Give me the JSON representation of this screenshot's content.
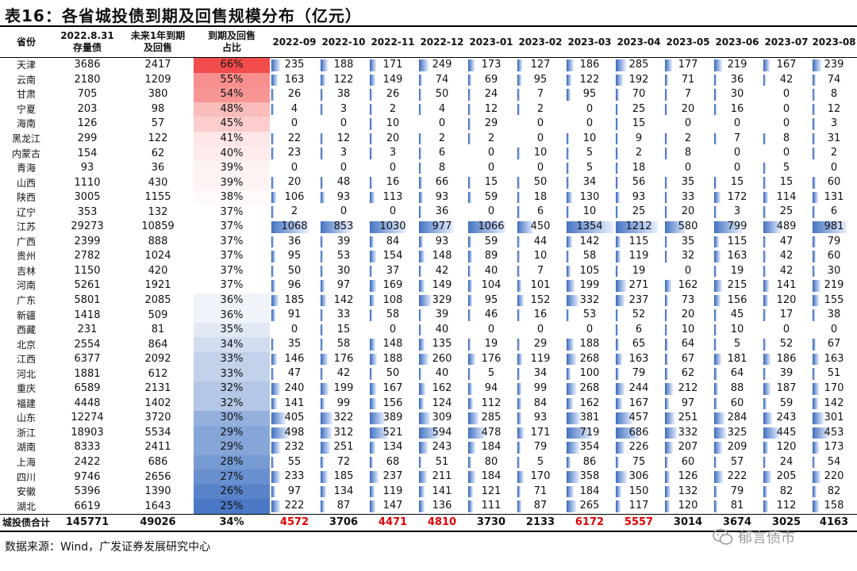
{
  "title": "表16：各省城投债到期及回售规模分布（亿元）",
  "header": {
    "prov": "省份",
    "stock": [
      "2022.8.31",
      "存量债"
    ],
    "due": [
      "未来1年到期",
      "及回售"
    ],
    "ratio": [
      "到期及回售",
      "占比"
    ],
    "months": [
      "2022-09",
      "2022-10",
      "2022-11",
      "2022-12",
      "2023-01",
      "2023-02",
      "2023-03",
      "2023-04",
      "2023-05",
      "2023-06",
      "2023-07",
      "2023-08"
    ]
  },
  "rows": [
    {
      "prov": "天津",
      "stock": "3686",
      "due": "2417",
      "ratio": "66%",
      "m": [
        235,
        188,
        171,
        249,
        173,
        127,
        186,
        285,
        177,
        219,
        167,
        239
      ]
    },
    {
      "prov": "云南",
      "stock": "2180",
      "due": "1209",
      "ratio": "55%",
      "m": [
        163,
        122,
        149,
        74,
        69,
        95,
        122,
        192,
        71,
        36,
        42,
        74
      ]
    },
    {
      "prov": "甘肃",
      "stock": "705",
      "due": "380",
      "ratio": "54%",
      "m": [
        26,
        38,
        26,
        50,
        24,
        7,
        95,
        70,
        7,
        30,
        0,
        8
      ]
    },
    {
      "prov": "宁夏",
      "stock": "203",
      "due": "98",
      "ratio": "48%",
      "m": [
        4,
        3,
        2,
        4,
        12,
        2,
        0,
        25,
        20,
        16,
        0,
        12
      ]
    },
    {
      "prov": "海南",
      "stock": "126",
      "due": "57",
      "ratio": "45%",
      "m": [
        0,
        0,
        10,
        0,
        29,
        0,
        0,
        15,
        0,
        0,
        0,
        3
      ]
    },
    {
      "prov": "黑龙江",
      "stock": "299",
      "due": "122",
      "ratio": "41%",
      "m": [
        22,
        12,
        20,
        2,
        2,
        0,
        10,
        9,
        2,
        7,
        8,
        31
      ]
    },
    {
      "prov": "内蒙古",
      "stock": "154",
      "due": "62",
      "ratio": "40%",
      "m": [
        23,
        3,
        3,
        6,
        0,
        10,
        5,
        2,
        8,
        0,
        0,
        2
      ]
    },
    {
      "prov": "青海",
      "stock": "93",
      "due": "36",
      "ratio": "39%",
      "m": [
        0,
        0,
        0,
        8,
        0,
        0,
        5,
        18,
        0,
        0,
        5,
        0
      ]
    },
    {
      "prov": "山西",
      "stock": "1110",
      "due": "430",
      "ratio": "39%",
      "m": [
        20,
        48,
        16,
        66,
        15,
        50,
        34,
        56,
        35,
        15,
        15,
        60
      ]
    },
    {
      "prov": "陕西",
      "stock": "3005",
      "due": "1155",
      "ratio": "38%",
      "m": [
        106,
        93,
        113,
        93,
        59,
        18,
        130,
        93,
        33,
        172,
        114,
        131
      ]
    },
    {
      "prov": "辽宁",
      "stock": "353",
      "due": "132",
      "ratio": "37%",
      "m": [
        2,
        0,
        0,
        36,
        0,
        6,
        10,
        25,
        20,
        3,
        25,
        6
      ]
    },
    {
      "prov": "江苏",
      "stock": "29273",
      "due": "10859",
      "ratio": "37%",
      "m": [
        1068,
        853,
        1030,
        977,
        1066,
        450,
        1354,
        1212,
        580,
        799,
        489,
        981
      ]
    },
    {
      "prov": "广西",
      "stock": "2399",
      "due": "888",
      "ratio": "37%",
      "m": [
        36,
        39,
        84,
        93,
        59,
        44,
        142,
        115,
        35,
        115,
        47,
        79
      ]
    },
    {
      "prov": "贵州",
      "stock": "2782",
      "due": "1024",
      "ratio": "37%",
      "m": [
        95,
        53,
        154,
        148,
        89,
        10,
        58,
        119,
        32,
        163,
        42,
        60
      ]
    },
    {
      "prov": "吉林",
      "stock": "1150",
      "due": "420",
      "ratio": "37%",
      "m": [
        50,
        30,
        37,
        42,
        40,
        7,
        105,
        19,
        0,
        19,
        42,
        30
      ]
    },
    {
      "prov": "河南",
      "stock": "5261",
      "due": "1921",
      "ratio": "37%",
      "m": [
        96,
        97,
        169,
        149,
        104,
        101,
        199,
        271,
        162,
        215,
        141,
        219
      ]
    },
    {
      "prov": "广东",
      "stock": "5801",
      "due": "2085",
      "ratio": "36%",
      "m": [
        185,
        142,
        108,
        329,
        95,
        152,
        332,
        237,
        73,
        156,
        120,
        155
      ]
    },
    {
      "prov": "新疆",
      "stock": "1418",
      "due": "509",
      "ratio": "36%",
      "m": [
        91,
        33,
        58,
        39,
        46,
        16,
        53,
        52,
        20,
        45,
        17,
        38
      ]
    },
    {
      "prov": "西藏",
      "stock": "231",
      "due": "81",
      "ratio": "35%",
      "m": [
        0,
        15,
        0,
        40,
        0,
        0,
        0,
        6,
        10,
        10,
        0,
        0
      ]
    },
    {
      "prov": "北京",
      "stock": "2554",
      "due": "864",
      "ratio": "34%",
      "m": [
        35,
        58,
        148,
        135,
        19,
        29,
        188,
        65,
        64,
        5,
        52,
        67
      ]
    },
    {
      "prov": "江西",
      "stock": "6377",
      "due": "2092",
      "ratio": "33%",
      "m": [
        146,
        176,
        188,
        260,
        176,
        119,
        268,
        163,
        67,
        181,
        186,
        163
      ]
    },
    {
      "prov": "河北",
      "stock": "1881",
      "due": "612",
      "ratio": "33%",
      "m": [
        47,
        42,
        50,
        40,
        5,
        34,
        100,
        79,
        62,
        64,
        39,
        51
      ]
    },
    {
      "prov": "重庆",
      "stock": "6589",
      "due": "2131",
      "ratio": "32%",
      "m": [
        240,
        199,
        167,
        162,
        94,
        99,
        268,
        244,
        212,
        88,
        187,
        170
      ]
    },
    {
      "prov": "福建",
      "stock": "4448",
      "due": "1402",
      "ratio": "32%",
      "m": [
        141,
        99,
        156,
        124,
        112,
        84,
        162,
        167,
        97,
        60,
        59,
        142
      ]
    },
    {
      "prov": "山东",
      "stock": "12274",
      "due": "3720",
      "ratio": "30%",
      "m": [
        405,
        322,
        389,
        309,
        285,
        93,
        381,
        457,
        251,
        284,
        243,
        301
      ]
    },
    {
      "prov": "浙江",
      "stock": "18903",
      "due": "5534",
      "ratio": "29%",
      "m": [
        498,
        312,
        521,
        594,
        478,
        171,
        719,
        686,
        332,
        325,
        445,
        453
      ]
    },
    {
      "prov": "湖南",
      "stock": "8333",
      "due": "2411",
      "ratio": "29%",
      "m": [
        232,
        251,
        134,
        243,
        184,
        79,
        354,
        226,
        207,
        209,
        120,
        173
      ]
    },
    {
      "prov": "上海",
      "stock": "2422",
      "due": "686",
      "ratio": "28%",
      "m": [
        55,
        72,
        68,
        51,
        80,
        5,
        86,
        75,
        60,
        57,
        24,
        54
      ]
    },
    {
      "prov": "四川",
      "stock": "9746",
      "due": "2656",
      "ratio": "27%",
      "m": [
        233,
        185,
        237,
        211,
        184,
        170,
        358,
        306,
        126,
        222,
        205,
        220
      ]
    },
    {
      "prov": "安徽",
      "stock": "5396",
      "due": "1390",
      "ratio": "26%",
      "m": [
        97,
        134,
        119,
        141,
        121,
        71,
        184,
        150,
        132,
        79,
        82,
        82
      ]
    },
    {
      "prov": "湖北",
      "stock": "6619",
      "due": "1643",
      "ratio": "25%",
      "m": [
        222,
        87,
        147,
        136,
        111,
        87,
        265,
        117,
        120,
        81,
        112,
        158
      ]
    }
  ],
  "total": {
    "prov": "城投债合计",
    "stock": "145771",
    "due": "49026",
    "ratio": "34%",
    "m": [
      4572,
      3706,
      4471,
      4810,
      3730,
      2133,
      6172,
      5557,
      3014,
      3674,
      3025,
      4163
    ],
    "red_cols": [
      0,
      2,
      3,
      6,
      7
    ]
  },
  "bar_max": 1354,
  "colors": {
    "high": "#f24b4b",
    "mid": "#ffffff",
    "low": "#4a78c4",
    "total_red": "#e00000"
  },
  "source": "数据来源：Wind，广发证券发展研究中心",
  "watermark": "郁言债市"
}
